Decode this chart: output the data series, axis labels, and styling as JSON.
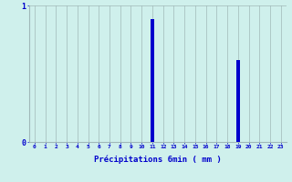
{
  "xlabel": "Précipitations 6min ( mm )",
  "hours": [
    0,
    1,
    2,
    3,
    4,
    5,
    6,
    7,
    8,
    9,
    10,
    11,
    12,
    13,
    14,
    15,
    16,
    17,
    18,
    19,
    20,
    21,
    22,
    23
  ],
  "values": [
    0,
    0,
    0,
    0,
    0,
    0,
    0,
    0,
    0,
    0,
    0,
    0.9,
    0,
    0,
    0,
    0,
    0,
    0,
    0,
    0.6,
    0,
    0,
    0,
    0
  ],
  "bar_color": "#0000cc",
  "bg_color": "#cff0ec",
  "grid_color": "#a0b8b8",
  "text_color": "#0000cc",
  "ylim": [
    0,
    1.0
  ],
  "yticks": [
    0,
    1
  ],
  "xlim": [
    -0.5,
    23.5
  ],
  "bar_width": 0.3
}
